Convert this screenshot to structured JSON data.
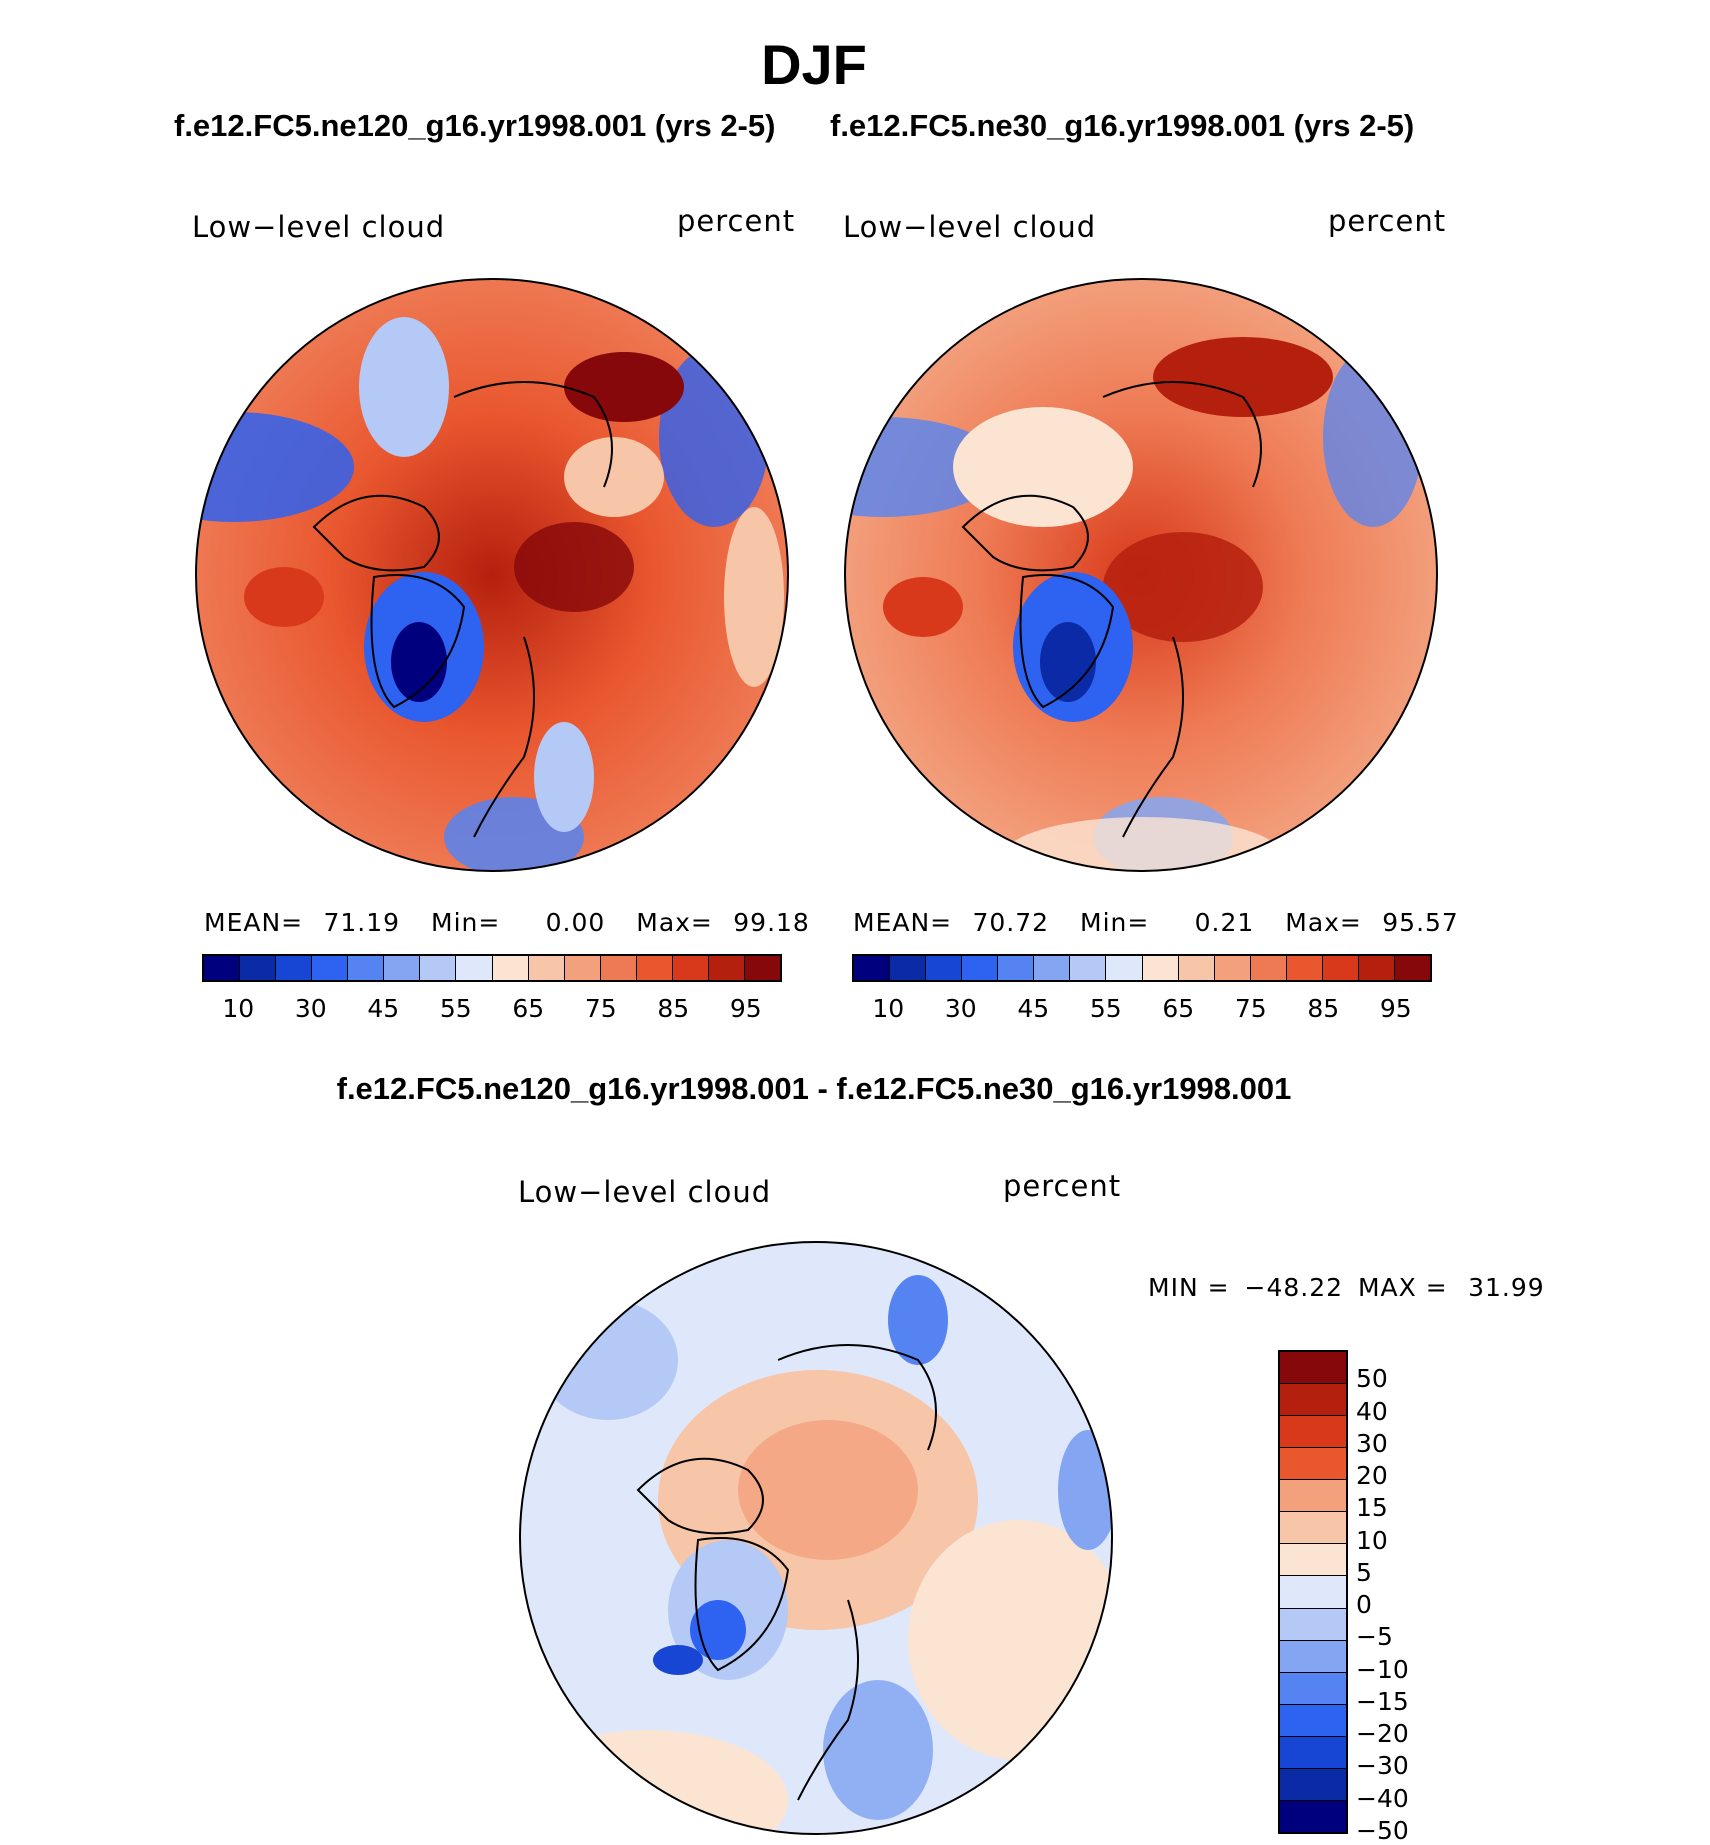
{
  "figure": {
    "season_title": "DJF",
    "diff_title": "f.e12.FC5.ne120_g16.yr1998.001 - f.e12.FC5.ne30_g16.yr1998.001"
  },
  "panels": [
    {
      "case_title": "f.e12.FC5.ne120_g16.yr1998.001 (yrs 2-5)",
      "variable": "Low−level cloud",
      "units": "percent",
      "mean_label": "MEAN=",
      "mean": "71.19",
      "min_label": "Min=",
      "min": "0.00",
      "max_label": "Max=",
      "max": "99.18"
    },
    {
      "case_title": "f.e12.FC5.ne30_g16.yr1998.001 (yrs 2-5)",
      "variable": "Low−level cloud",
      "units": "percent",
      "mean_label": "MEAN=",
      "mean": "70.72",
      "min_label": "Min=",
      "min": "0.21",
      "max_label": "Max=",
      "max": "95.57"
    }
  ],
  "diff_panel": {
    "variable": "Low−level cloud",
    "units": "percent",
    "min_label": "MIN =",
    "min": "−48.22",
    "max_label": "MAX =",
    "max": "31.99"
  },
  "chart_data": [
    {
      "type": "heatmap",
      "projection": "north polar stereographic",
      "title": "f.e12.FC5.ne120_g16.yr1998.001 (yrs 2-5)",
      "variable": "Low-level cloud",
      "units": "percent",
      "stats": {
        "mean": 71.19,
        "min": 0.0,
        "max": 99.18
      },
      "colorbar_levels": [
        10,
        20,
        30,
        40,
        45,
        50,
        55,
        60,
        65,
        70,
        75,
        80,
        85,
        90,
        95
      ],
      "colorbar_tick_labels": [
        "10",
        "30",
        "45",
        "55",
        "65",
        "75",
        "85",
        "95"
      ],
      "colors": [
        "#00007f",
        "#0b2aa6",
        "#1646d3",
        "#2e62f0",
        "#5584f2",
        "#84a6f2",
        "#b4c9f5",
        "#dfe8fa",
        "#fbe4d2",
        "#f7c5a8",
        "#f3a07d",
        "#ee7a54",
        "#e9572f",
        "#d8391a",
        "#b5200e",
        "#86080a"
      ]
    },
    {
      "type": "heatmap",
      "projection": "north polar stereographic",
      "title": "f.e12.FC5.ne30_g16.yr1998.001 (yrs 2-5)",
      "variable": "Low-level cloud",
      "units": "percent",
      "stats": {
        "mean": 70.72,
        "min": 0.21,
        "max": 95.57
      },
      "colorbar_levels": [
        10,
        20,
        30,
        40,
        45,
        50,
        55,
        60,
        65,
        70,
        75,
        80,
        85,
        90,
        95
      ],
      "colorbar_tick_labels": [
        "10",
        "30",
        "45",
        "55",
        "65",
        "75",
        "85",
        "95"
      ],
      "colors": [
        "#00007f",
        "#0b2aa6",
        "#1646d3",
        "#2e62f0",
        "#5584f2",
        "#84a6f2",
        "#b4c9f5",
        "#dfe8fa",
        "#fbe4d2",
        "#f7c5a8",
        "#f3a07d",
        "#ee7a54",
        "#e9572f",
        "#d8391a",
        "#b5200e",
        "#86080a"
      ]
    },
    {
      "type": "heatmap",
      "projection": "north polar stereographic",
      "title": "f.e12.FC5.ne120_g16.yr1998.001 - f.e12.FC5.ne30_g16.yr1998.001",
      "variable": "Low-level cloud",
      "units": "percent",
      "stats": {
        "min": -48.22,
        "max": 31.99
      },
      "colorbar_tick_labels": [
        "50",
        "40",
        "30",
        "20",
        "15",
        "10",
        "5",
        "0",
        "−5",
        "−10",
        "−15",
        "−20",
        "−30",
        "−40",
        "−50"
      ],
      "colors": [
        "#86080a",
        "#b5200e",
        "#d8391a",
        "#e9572f",
        "#f3a07d",
        "#f7c5a8",
        "#fbe4d2",
        "#dfe8fa",
        "#b4c9f5",
        "#84a6f2",
        "#5584f2",
        "#2e62f0",
        "#1646d3",
        "#0b2aa6",
        "#00007f"
      ]
    }
  ]
}
